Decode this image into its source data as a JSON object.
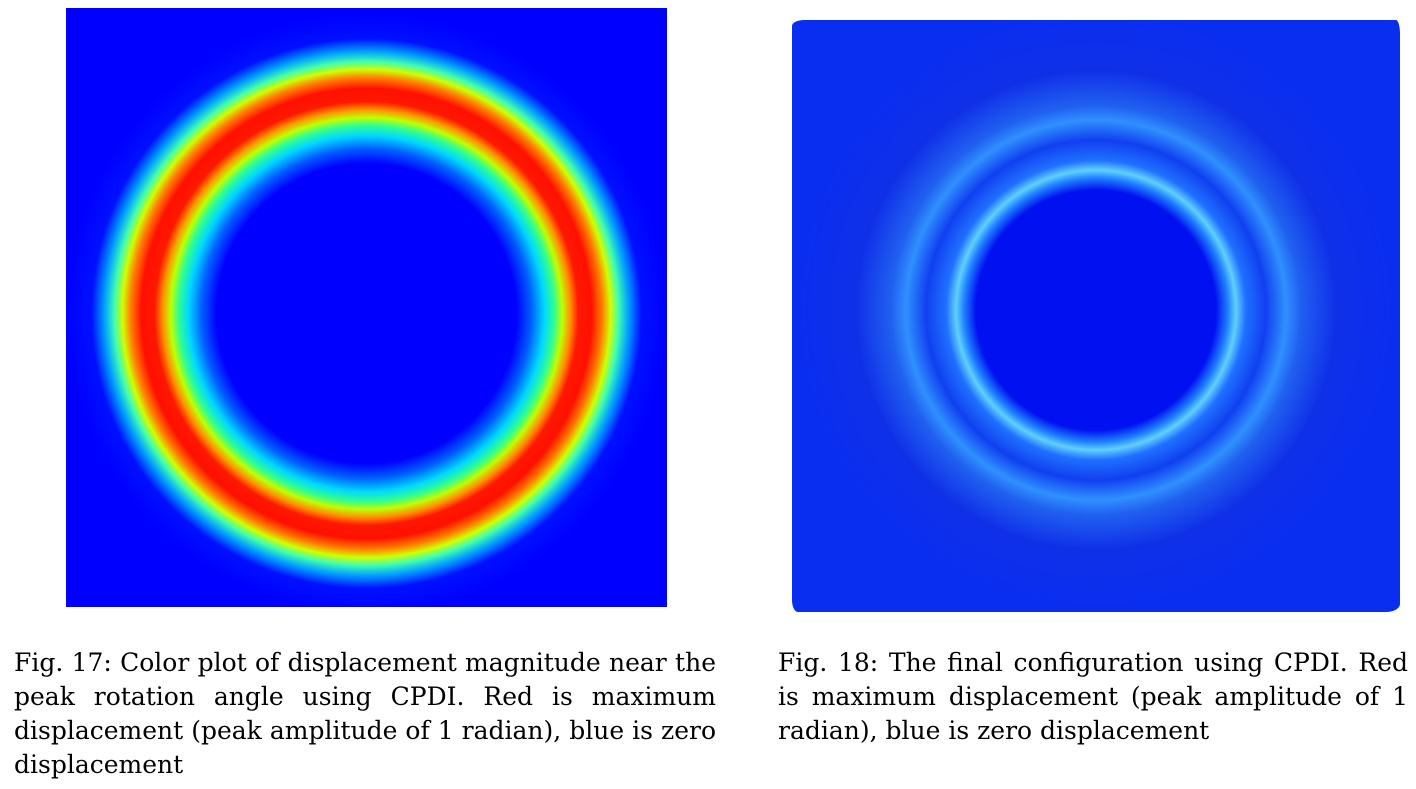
{
  "figures": [
    {
      "id": "fig17",
      "caption": "Fig. 17: Color plot of displacement magnitude near the peak rotation angle using CPDI. Red is maximum displacement (peak amplitude of 1 radian), blue is zero displacement"
    },
    {
      "id": "fig18",
      "caption": "Fig. 18: The final configuration using CPDI. Red is maximum displacement (peak amplitude of 1 radian), blue is zero displacement"
    }
  ],
  "colors": {
    "max_displacement": "#ff0000",
    "zero_displacement": "#0000ff"
  }
}
